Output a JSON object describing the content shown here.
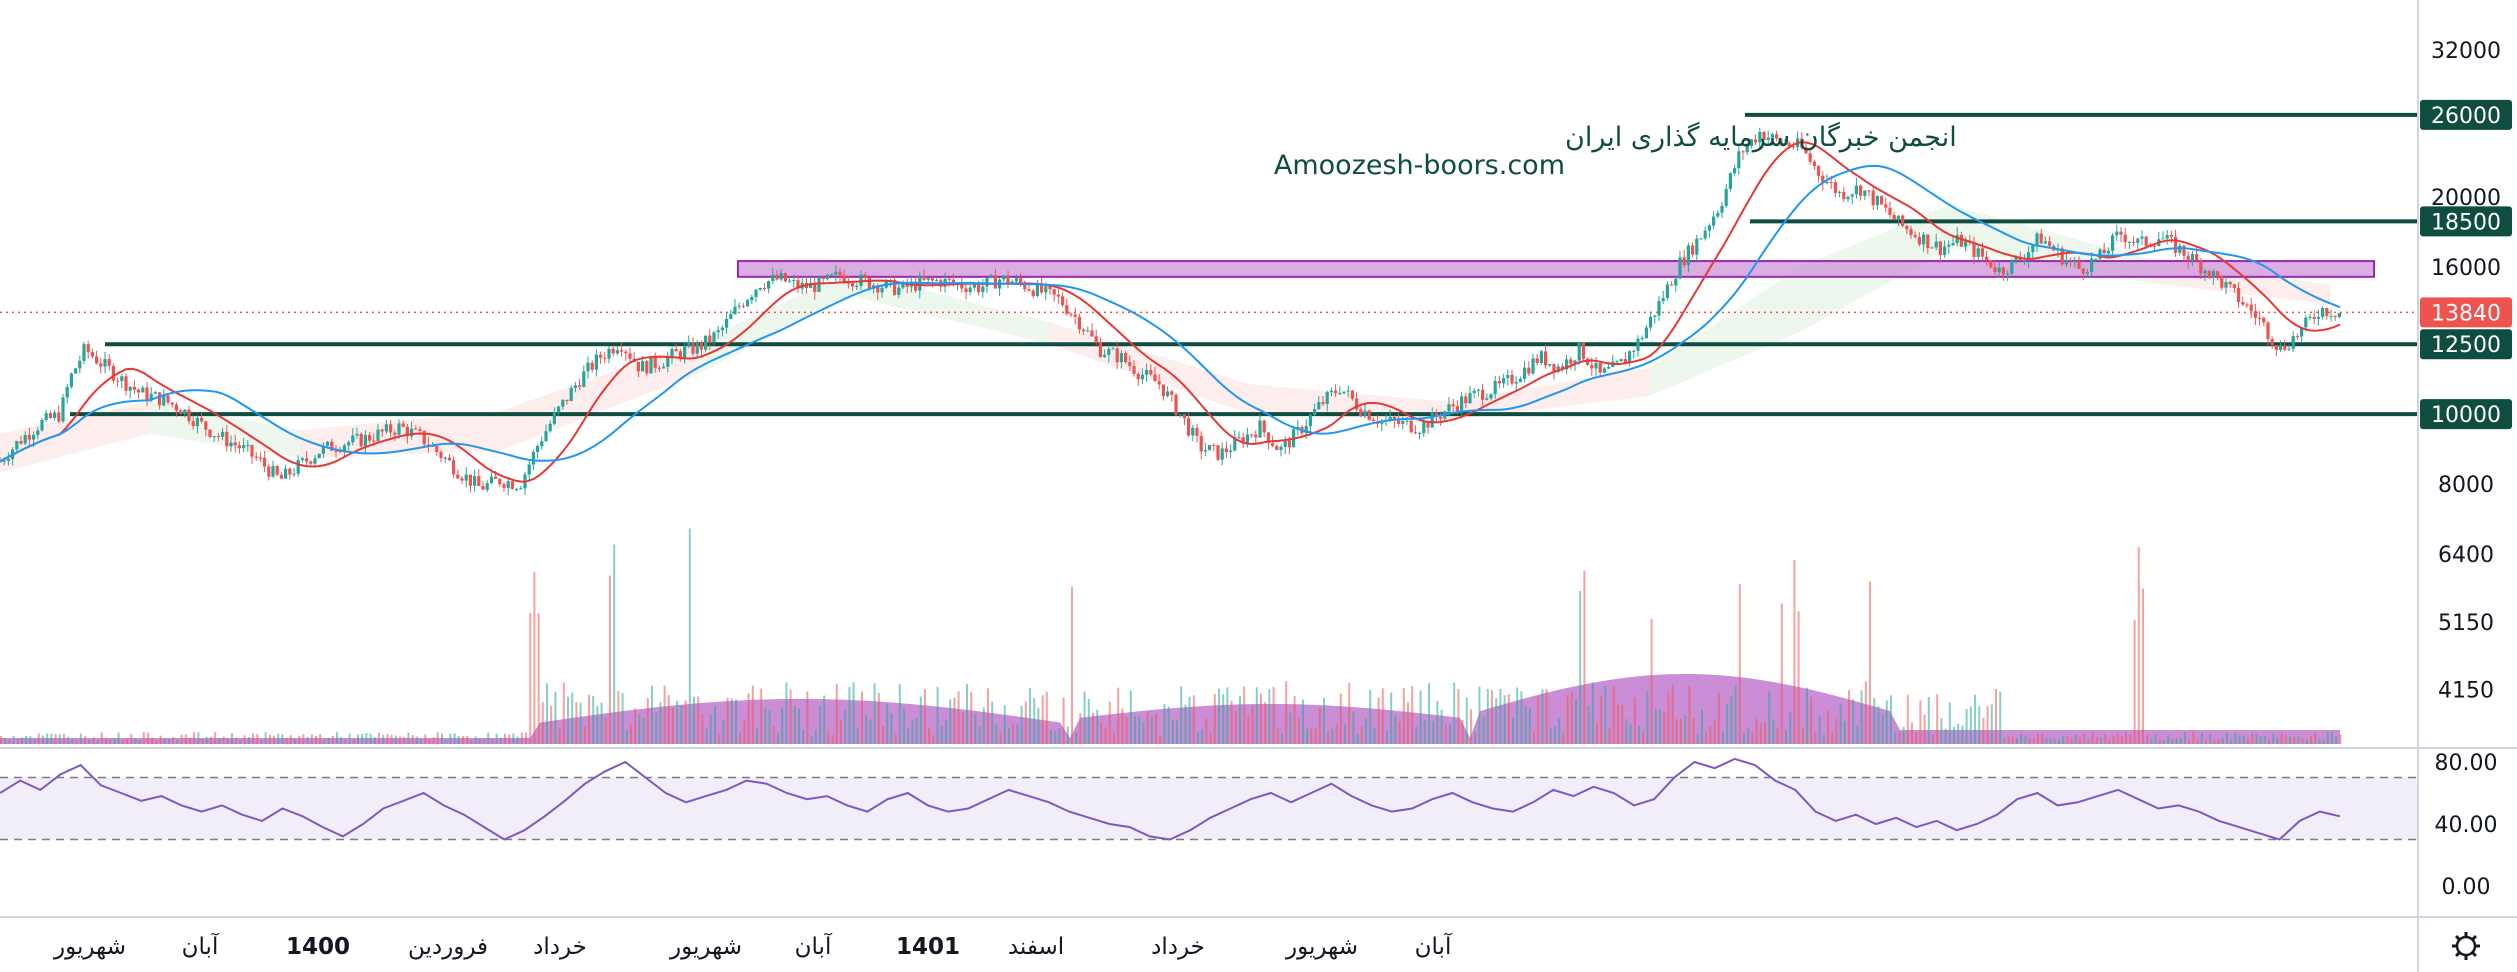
{
  "watermark": {
    "line1": "انجمن خبرگان سرمایه گذاری ایران",
    "line2": "Amoozesh-boors.com"
  },
  "chart_data": {
    "type": "candlestick",
    "price_axis": {
      "scale": "log",
      "ticks": [
        32000,
        26000,
        20000,
        18500,
        16000,
        12500,
        10000,
        8000,
        6400,
        5150,
        4150
      ]
    },
    "current_price": 13840,
    "current_price_color": "#ef5350",
    "levels": [
      {
        "value": 26000,
        "color": "#0e4d3f"
      },
      {
        "value": 18500,
        "color": "#0e4d3f"
      },
      {
        "value": 12500,
        "color": "#0e4d3f"
      },
      {
        "value": 10000,
        "color": "#0e4d3f"
      }
    ],
    "resistance_zone": {
      "low": 15500,
      "high": 16300,
      "color": "#ce93d8"
    },
    "price_series": [
      {
        "x": 0,
        "close": 8600
      },
      {
        "x": 20,
        "close": 9200
      },
      {
        "x": 40,
        "close": 9700
      },
      {
        "x": 60,
        "close": 10000
      },
      {
        "x": 70,
        "close": 11200
      },
      {
        "x": 85,
        "close": 12300
      },
      {
        "x": 100,
        "close": 11800
      },
      {
        "x": 120,
        "close": 11200
      },
      {
        "x": 140,
        "close": 10700
      },
      {
        "x": 160,
        "close": 10500
      },
      {
        "x": 180,
        "close": 10200
      },
      {
        "x": 200,
        "close": 9700
      },
      {
        "x": 220,
        "close": 9300
      },
      {
        "x": 240,
        "close": 9000
      },
      {
        "x": 260,
        "close": 8600
      },
      {
        "x": 280,
        "close": 8100
      },
      {
        "x": 300,
        "close": 8500
      },
      {
        "x": 320,
        "close": 8900
      },
      {
        "x": 340,
        "close": 9100
      },
      {
        "x": 360,
        "close": 9200
      },
      {
        "x": 380,
        "close": 9400
      },
      {
        "x": 400,
        "close": 9600
      },
      {
        "x": 420,
        "close": 9300
      },
      {
        "x": 440,
        "close": 8800
      },
      {
        "x": 460,
        "close": 8300
      },
      {
        "x": 480,
        "close": 7900
      },
      {
        "x": 500,
        "close": 8100
      },
      {
        "x": 520,
        "close": 8000
      },
      {
        "x": 540,
        "close": 9200
      },
      {
        "x": 560,
        "close": 10200
      },
      {
        "x": 580,
        "close": 11200
      },
      {
        "x": 600,
        "close": 12000
      },
      {
        "x": 620,
        "close": 12600
      },
      {
        "x": 640,
        "close": 11600
      },
      {
        "x": 660,
        "close": 11800
      },
      {
        "x": 680,
        "close": 12200
      },
      {
        "x": 700,
        "close": 12400
      },
      {
        "x": 720,
        "close": 13000
      },
      {
        "x": 740,
        "close": 14200
      },
      {
        "x": 760,
        "close": 15200
      },
      {
        "x": 780,
        "close": 15400
      },
      {
        "x": 800,
        "close": 15000
      },
      {
        "x": 820,
        "close": 15100
      },
      {
        "x": 840,
        "close": 15600
      },
      {
        "x": 860,
        "close": 15300
      },
      {
        "x": 880,
        "close": 15100
      },
      {
        "x": 900,
        "close": 14900
      },
      {
        "x": 920,
        "close": 15200
      },
      {
        "x": 940,
        "close": 15300
      },
      {
        "x": 960,
        "close": 15100
      },
      {
        "x": 980,
        "close": 15000
      },
      {
        "x": 1000,
        "close": 15400
      },
      {
        "x": 1020,
        "close": 15200
      },
      {
        "x": 1040,
        "close": 14800
      },
      {
        "x": 1060,
        "close": 14400
      },
      {
        "x": 1080,
        "close": 13400
      },
      {
        "x": 1100,
        "close": 12300
      },
      {
        "x": 1120,
        "close": 12000
      },
      {
        "x": 1140,
        "close": 11400
      },
      {
        "x": 1160,
        "close": 11000
      },
      {
        "x": 1180,
        "close": 10000
      },
      {
        "x": 1200,
        "close": 9000
      },
      {
        "x": 1220,
        "close": 8800
      },
      {
        "x": 1240,
        "close": 9200
      },
      {
        "x": 1260,
        "close": 9600
      },
      {
        "x": 1280,
        "close": 8900
      },
      {
        "x": 1300,
        "close": 9500
      },
      {
        "x": 1320,
        "close": 10300
      },
      {
        "x": 1340,
        "close": 10900
      },
      {
        "x": 1360,
        "close": 10200
      },
      {
        "x": 1380,
        "close": 9800
      },
      {
        "x": 1400,
        "close": 9700
      },
      {
        "x": 1420,
        "close": 9600
      },
      {
        "x": 1440,
        "close": 10000
      },
      {
        "x": 1460,
        "close": 10400
      },
      {
        "x": 1480,
        "close": 10700
      },
      {
        "x": 1500,
        "close": 10900
      },
      {
        "x": 1520,
        "close": 11400
      },
      {
        "x": 1540,
        "close": 12000
      },
      {
        "x": 1560,
        "close": 11600
      },
      {
        "x": 1580,
        "close": 12300
      },
      {
        "x": 1600,
        "close": 11300
      },
      {
        "x": 1620,
        "close": 11700
      },
      {
        "x": 1640,
        "close": 12700
      },
      {
        "x": 1660,
        "close": 14300
      },
      {
        "x": 1680,
        "close": 16200
      },
      {
        "x": 1700,
        "close": 17600
      },
      {
        "x": 1720,
        "close": 19500
      },
      {
        "x": 1740,
        "close": 23000
      },
      {
        "x": 1760,
        "close": 24600
      },
      {
        "x": 1780,
        "close": 23800
      },
      {
        "x": 1800,
        "close": 23500
      },
      {
        "x": 1820,
        "close": 21500
      },
      {
        "x": 1840,
        "close": 20200
      },
      {
        "x": 1860,
        "close": 20600
      },
      {
        "x": 1880,
        "close": 19500
      },
      {
        "x": 1900,
        "close": 18300
      },
      {
        "x": 1920,
        "close": 17600
      },
      {
        "x": 1940,
        "close": 17000
      },
      {
        "x": 1960,
        "close": 17400
      },
      {
        "x": 1980,
        "close": 16600
      },
      {
        "x": 2000,
        "close": 15800
      },
      {
        "x": 2020,
        "close": 16400
      },
      {
        "x": 2040,
        "close": 17600
      },
      {
        "x": 2060,
        "close": 16600
      },
      {
        "x": 2080,
        "close": 15900
      },
      {
        "x": 2100,
        "close": 16500
      },
      {
        "x": 2120,
        "close": 17800
      },
      {
        "x": 2140,
        "close": 17200
      },
      {
        "x": 2160,
        "close": 17600
      },
      {
        "x": 2180,
        "close": 16900
      },
      {
        "x": 2200,
        "close": 16100
      },
      {
        "x": 2220,
        "close": 15300
      },
      {
        "x": 2240,
        "close": 14400
      },
      {
        "x": 2260,
        "close": 13500
      },
      {
        "x": 2280,
        "close": 12300
      },
      {
        "x": 2300,
        "close": 13000
      },
      {
        "x": 2320,
        "close": 14000
      },
      {
        "x": 2340,
        "close": 13840
      }
    ],
    "rsi": {
      "ticks": [
        80,
        40,
        0
      ],
      "tick_labels": [
        "80.00",
        "40.00",
        "0.00"
      ],
      "upper": 70,
      "lower": 30,
      "values": [
        60,
        68,
        62,
        72,
        78,
        65,
        60,
        55,
        58,
        52,
        48,
        52,
        46,
        42,
        50,
        45,
        38,
        32,
        40,
        50,
        55,
        60,
        52,
        46,
        38,
        30,
        36,
        45,
        55,
        66,
        74,
        80,
        70,
        60,
        54,
        58,
        62,
        68,
        66,
        60,
        56,
        58,
        52,
        48,
        56,
        60,
        52,
        48,
        50,
        56,
        62,
        58,
        54,
        48,
        44,
        40,
        38,
        32,
        30,
        36,
        44,
        50,
        56,
        60,
        54,
        60,
        66,
        58,
        52,
        48,
        50,
        56,
        60,
        54,
        50,
        48,
        54,
        62,
        58,
        64,
        60,
        52,
        56,
        70,
        80,
        76,
        82,
        78,
        68,
        62,
        48,
        42,
        46,
        40,
        44,
        38,
        42,
        36,
        40,
        46,
        56,
        60,
        52,
        54,
        58,
        62,
        56,
        50,
        52,
        48,
        42,
        38,
        34,
        30,
        42,
        48,
        45
      ]
    },
    "time_axis": [
      {
        "label": "شهریور",
        "x": 90,
        "bold": false
      },
      {
        "label": "آبان",
        "x": 200,
        "bold": false
      },
      {
        "label": "1400",
        "x": 318,
        "bold": true
      },
      {
        "label": "فروردین",
        "x": 448,
        "bold": false
      },
      {
        "label": "خرداد",
        "x": 560,
        "bold": false
      },
      {
        "label": "شهریور",
        "x": 706,
        "bold": false
      },
      {
        "label": "آبان",
        "x": 813,
        "bold": false
      },
      {
        "label": "1401",
        "x": 928,
        "bold": true
      },
      {
        "label": "اسفند",
        "x": 1036,
        "bold": false
      },
      {
        "label": "خرداد",
        "x": 1178,
        "bold": false
      },
      {
        "label": "شهریور",
        "x": 1322,
        "bold": false
      },
      {
        "label": "آبان",
        "x": 1433,
        "bold": false
      }
    ]
  },
  "colors": {
    "up": "#26a69a",
    "down": "#ef5350",
    "ma_fast": "#e53935",
    "ma_slow": "#2196f3",
    "level_line": "#0e4d3f",
    "rsi_line": "#7e57c2",
    "volume_area": "#ba68c8"
  },
  "settings_icon": "gear-icon"
}
